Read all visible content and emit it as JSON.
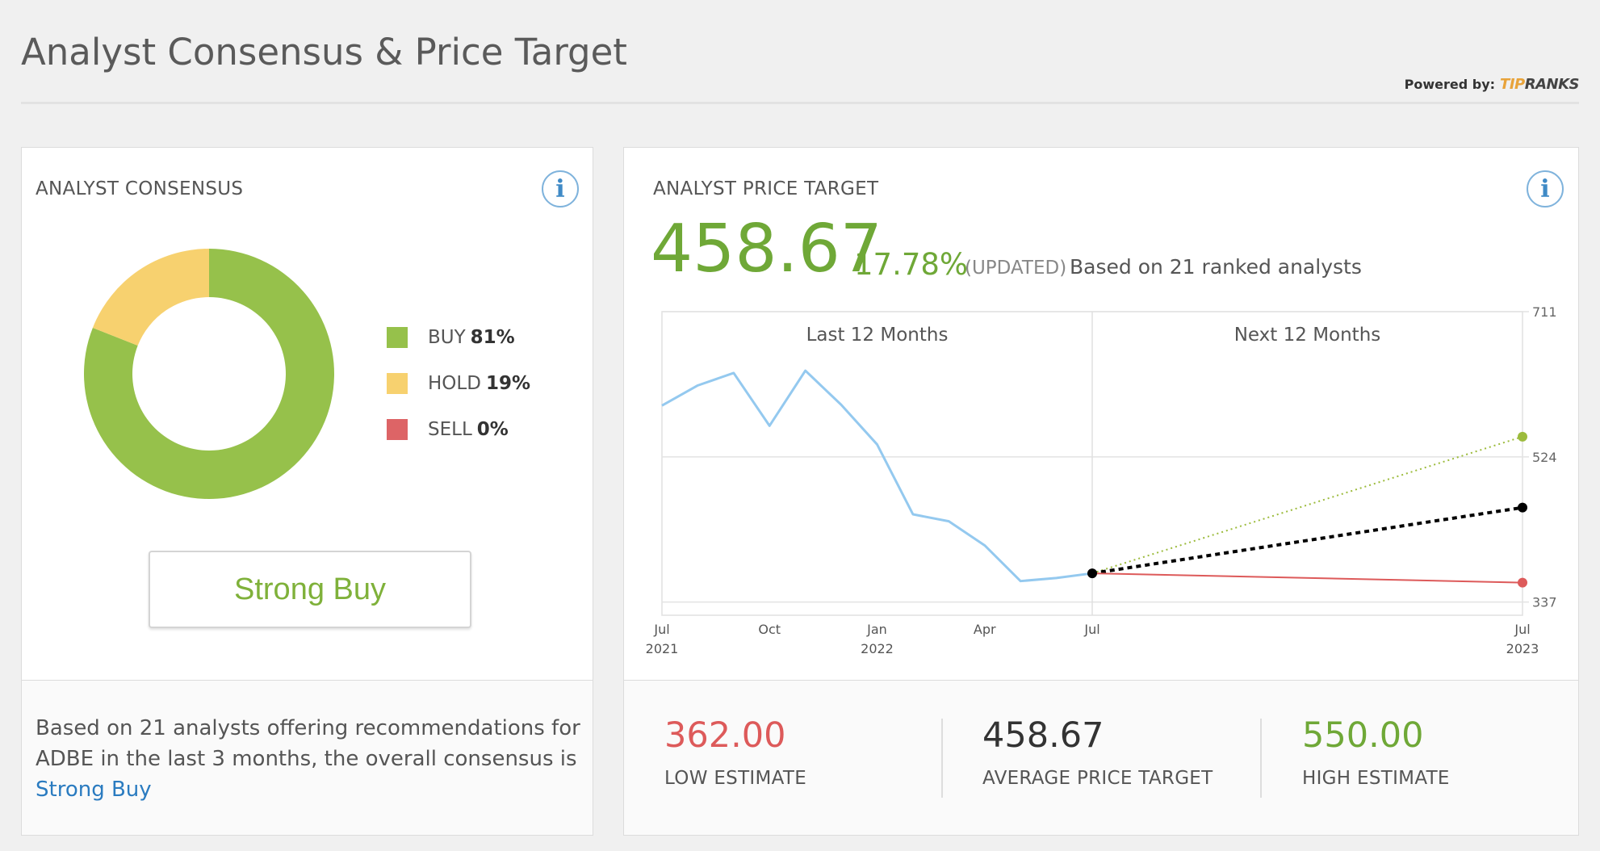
{
  "header": {
    "title": "Analyst Consensus & Price Target",
    "powered_by": "Powered by:",
    "logo_tip": "TIP",
    "logo_ranks": "RANKS"
  },
  "consensus": {
    "label": "ANALYST CONSENSUS",
    "info_icon": "i",
    "legend": [
      {
        "label": "BUY",
        "pct": "81%",
        "color": "#96c14b"
      },
      {
        "label": "HOLD",
        "pct": "19%",
        "color": "#f7d16f"
      },
      {
        "label": "SELL",
        "pct": "0%",
        "color": "#dd6466"
      }
    ],
    "rating_button": "Strong Buy",
    "summary_text": "Based on 21 analysts offering recommendations for ADBE in the last 3 months, the overall consensus is",
    "summary_link": "Strong Buy"
  },
  "price_target": {
    "label": "ANALYST PRICE TARGET",
    "info_icon": "i",
    "value": "458.67",
    "change_pct": "17.78%",
    "updated": "(UPDATED)",
    "based_on": "Based on 21 ranked analysts",
    "estimates": [
      {
        "value": "362.00",
        "label": "LOW ESTIMATE",
        "color": "#dd5a5a"
      },
      {
        "value": "458.67",
        "label": "AVERAGE PRICE TARGET",
        "color": "#333333"
      },
      {
        "value": "550.00",
        "label": "HIGH ESTIMATE",
        "color": "#6fa837"
      }
    ]
  },
  "chart_data": [
    {
      "type": "pie",
      "categories": [
        "BUY",
        "HOLD",
        "SELL"
      ],
      "values": [
        81,
        19,
        0
      ],
      "colors": [
        "#96c14b",
        "#f7d16f",
        "#dd6466"
      ]
    },
    {
      "type": "line",
      "section_labels": [
        "Last 12 Months",
        "Next 12 Months"
      ],
      "x_ticks": [
        {
          "label": "Jul",
          "sub": "2021",
          "t": 0
        },
        {
          "label": "Oct",
          "sub": "",
          "t": 3
        },
        {
          "label": "Jan",
          "sub": "2022",
          "t": 6
        },
        {
          "label": "Apr",
          "sub": "",
          "t": 9
        },
        {
          "label": "Jul",
          "sub": "",
          "t": 12
        },
        {
          "label": "Jul",
          "sub": "2023",
          "t": 24
        }
      ],
      "y_ticks": [
        711,
        524,
        337
      ],
      "ylim": [
        320,
        711
      ],
      "xlim": [
        0,
        24
      ],
      "grid": true,
      "series": [
        {
          "x": [
            0,
            1,
            2,
            3,
            4,
            5,
            6,
            7,
            8,
            9,
            10,
            11,
            12
          ],
          "values": [
            590,
            616,
            632,
            564,
            635,
            591,
            540,
            450,
            441,
            410,
            364,
            368,
            374
          ],
          "color": "#94c9ef",
          "style": "solid"
        },
        {
          "x": [
            12,
            24
          ],
          "values": [
            374,
            550
          ],
          "color": "#9cbb3c",
          "style": "dotted"
        },
        {
          "x": [
            12,
            24
          ],
          "values": [
            374,
            458.67
          ],
          "color": "#000000",
          "style": "dashed"
        },
        {
          "x": [
            12,
            24
          ],
          "values": [
            374,
            362
          ],
          "color": "#dd5a5a",
          "style": "solid"
        }
      ]
    }
  ]
}
